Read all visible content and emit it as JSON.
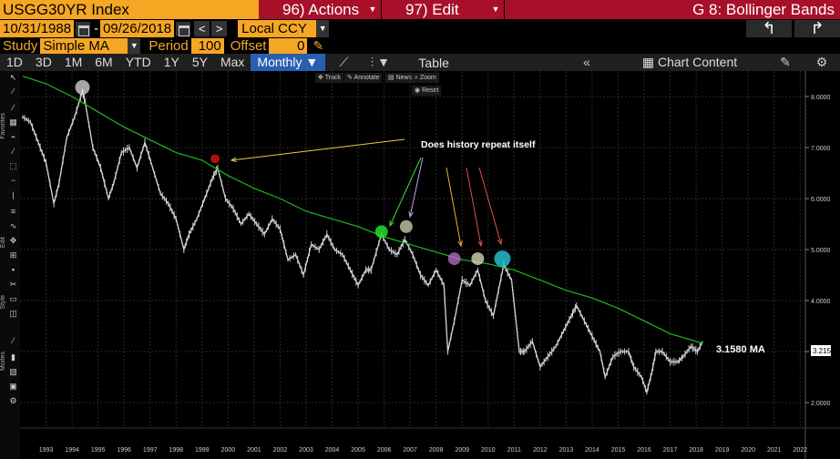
{
  "header": {
    "ticker": "USGG30YR Index",
    "actions_label": "96) Actions",
    "edit_label": "97) Edit",
    "title": "G 8: Bollinger Bands"
  },
  "dates": {
    "start": "10/31/1988",
    "separator": "-",
    "end": "09/26/2018",
    "prev": "<",
    "next": ">",
    "currency": "Local CCY"
  },
  "study": {
    "study_label": "Study",
    "study_value": "Simple MA",
    "period_label": "Period",
    "period_value": "100",
    "offset_label": "Offset",
    "offset_value": "0"
  },
  "toolbar": {
    "ranges": [
      "1D",
      "3D",
      "1M",
      "6M",
      "YTD",
      "1Y",
      "5Y",
      "Max"
    ],
    "frequency": "Monthly",
    "table_label": "Table",
    "chart_content_label": "Chart Content"
  },
  "mini_toolbar": {
    "track": "Track",
    "annotate": "Annotate",
    "news": "News",
    "zoom": "Zoom",
    "reset": "Reset"
  },
  "sidebar": {
    "favorites_label": "Favorites",
    "edit_label": "Edit",
    "style_label": "Style",
    "modes_label": "Modes"
  },
  "colors": {
    "accent": "#f5a623",
    "header_red": "#a8102a",
    "ma_line": "#1fb81f",
    "price": "#d8d8d8",
    "active_tab": "#2a5fb0"
  },
  "chart_data": {
    "type": "line",
    "x_ticks": [
      "1993",
      "1994",
      "1995",
      "1996",
      "1997",
      "1998",
      "1999",
      "2000",
      "2001",
      "2002",
      "2003",
      "2004",
      "2005",
      "2006",
      "2007",
      "2008",
      "2009",
      "2010",
      "2011",
      "2012",
      "2013",
      "2014",
      "2015",
      "2016",
      "2017",
      "2018",
      "2019",
      "2020",
      "2021",
      "2022"
    ],
    "y_ticks": [
      "8.0000",
      "7.0000",
      "6.0000",
      "5.0000",
      "4.0000",
      "3.0000",
      "2.0000"
    ],
    "ylim": [
      1.5,
      8.5
    ],
    "xlim": [
      1992.5,
      2022.7
    ],
    "last_price_label": "3.2157",
    "ma_label": "3.1580 MA",
    "annotation": "Does history repeat itself",
    "series": [
      {
        "values": [
          [
            1992.6,
            7.6
          ],
          [
            1992.9,
            7.5
          ],
          [
            1993.2,
            7.1
          ],
          [
            1993.5,
            6.7
          ],
          [
            1993.8,
            5.9
          ],
          [
            1994.0,
            6.3
          ],
          [
            1994.3,
            7.2
          ],
          [
            1994.6,
            7.6
          ],
          [
            1994.9,
            8.1
          ],
          [
            1995.0,
            7.9
          ],
          [
            1995.3,
            7.0
          ],
          [
            1995.6,
            6.6
          ],
          [
            1995.9,
            6.0
          ],
          [
            1996.1,
            6.3
          ],
          [
            1996.4,
            6.9
          ],
          [
            1996.7,
            7.0
          ],
          [
            1997.0,
            6.6
          ],
          [
            1997.3,
            7.1
          ],
          [
            1997.6,
            6.6
          ],
          [
            1997.9,
            6.1
          ],
          [
            1998.2,
            5.9
          ],
          [
            1998.5,
            5.6
          ],
          [
            1998.8,
            5.0
          ],
          [
            1999.0,
            5.3
          ],
          [
            1999.3,
            5.6
          ],
          [
            1999.6,
            6.0
          ],
          [
            1999.9,
            6.4
          ],
          [
            2000.1,
            6.6
          ],
          [
            2000.4,
            6.0
          ],
          [
            2000.7,
            5.8
          ],
          [
            2001.0,
            5.5
          ],
          [
            2001.3,
            5.7
          ],
          [
            2001.6,
            5.5
          ],
          [
            2001.9,
            5.3
          ],
          [
            2002.2,
            5.6
          ],
          [
            2002.5,
            5.4
          ],
          [
            2002.8,
            4.8
          ],
          [
            2003.1,
            4.9
          ],
          [
            2003.4,
            4.5
          ],
          [
            2003.7,
            5.1
          ],
          [
            2004.0,
            5.0
          ],
          [
            2004.3,
            5.3
          ],
          [
            2004.6,
            5.0
          ],
          [
            2004.9,
            4.9
          ],
          [
            2005.2,
            4.6
          ],
          [
            2005.5,
            4.3
          ],
          [
            2005.8,
            4.6
          ],
          [
            2006.0,
            4.6
          ],
          [
            2006.4,
            5.3
          ],
          [
            2006.7,
            5.0
          ],
          [
            2007.0,
            4.9
          ],
          [
            2007.3,
            5.2
          ],
          [
            2007.6,
            4.9
          ],
          [
            2007.9,
            4.5
          ],
          [
            2008.2,
            4.3
          ],
          [
            2008.5,
            4.6
          ],
          [
            2008.8,
            4.3
          ],
          [
            2008.95,
            3.0
          ],
          [
            2009.2,
            3.6
          ],
          [
            2009.5,
            4.4
          ],
          [
            2009.8,
            4.3
          ],
          [
            2010.1,
            4.6
          ],
          [
            2010.4,
            4.0
          ],
          [
            2010.7,
            3.7
          ],
          [
            2010.9,
            4.2
          ],
          [
            2011.1,
            4.7
          ],
          [
            2011.4,
            4.4
          ],
          [
            2011.7,
            3.0
          ],
          [
            2011.9,
            3.0
          ],
          [
            2012.2,
            3.2
          ],
          [
            2012.5,
            2.7
          ],
          [
            2012.8,
            2.9
          ],
          [
            2013.1,
            3.1
          ],
          [
            2013.4,
            3.4
          ],
          [
            2013.7,
            3.7
          ],
          [
            2013.9,
            3.9
          ],
          [
            2014.2,
            3.6
          ],
          [
            2014.5,
            3.3
          ],
          [
            2014.8,
            3.0
          ],
          [
            2015.0,
            2.5
          ],
          [
            2015.3,
            2.9
          ],
          [
            2015.6,
            3.0
          ],
          [
            2015.9,
            3.0
          ],
          [
            2016.1,
            2.7
          ],
          [
            2016.4,
            2.5
          ],
          [
            2016.6,
            2.2
          ],
          [
            2016.8,
            2.6
          ],
          [
            2016.95,
            3.0
          ],
          [
            2017.2,
            3.0
          ],
          [
            2017.5,
            2.8
          ],
          [
            2017.8,
            2.8
          ],
          [
            2018.0,
            2.9
          ],
          [
            2018.3,
            3.1
          ],
          [
            2018.55,
            3.0
          ],
          [
            2018.75,
            3.2
          ]
        ]
      },
      {
        "values": [
          [
            1992.6,
            8.4
          ],
          [
            1993.5,
            8.25
          ],
          [
            1994.5,
            8.0
          ],
          [
            1995.5,
            7.7
          ],
          [
            1996.5,
            7.4
          ],
          [
            1997.5,
            7.15
          ],
          [
            1998.5,
            6.9
          ],
          [
            1999.5,
            6.75
          ],
          [
            2000.5,
            6.45
          ],
          [
            2001.5,
            6.2
          ],
          [
            2002.5,
            6.0
          ],
          [
            2003.5,
            5.75
          ],
          [
            2004.5,
            5.6
          ],
          [
            2005.5,
            5.45
          ],
          [
            2006.5,
            5.25
          ],
          [
            2007.5,
            5.1
          ],
          [
            2008.5,
            4.95
          ],
          [
            2009.5,
            4.8
          ],
          [
            2010.5,
            4.72
          ],
          [
            2011.5,
            4.6
          ],
          [
            2012.5,
            4.4
          ],
          [
            2013.5,
            4.2
          ],
          [
            2014.5,
            4.05
          ],
          [
            2015.5,
            3.85
          ],
          [
            2016.5,
            3.6
          ],
          [
            2017.5,
            3.35
          ],
          [
            2018.75,
            3.16
          ]
        ]
      }
    ]
  }
}
